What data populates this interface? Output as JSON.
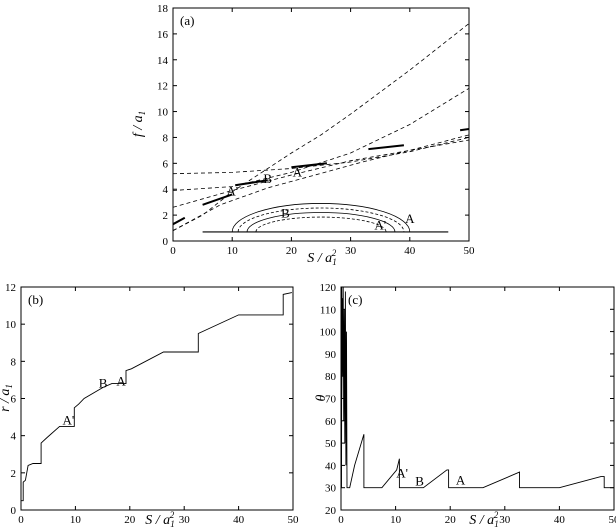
{
  "chart_data": [
    {
      "type": "line",
      "panel_label": "(a)",
      "xlabel_parts": [
        "S / a",
        "1",
        "2"
      ],
      "ylabel_parts": [
        "f / a",
        "1"
      ],
      "xlim": [
        0,
        50
      ],
      "ylim": [
        0,
        18
      ],
      "xticks": [
        0,
        10,
        20,
        30,
        40,
        50
      ],
      "yticks": [
        0,
        2,
        4,
        6,
        8,
        10,
        12,
        14,
        16,
        18
      ],
      "grid": false,
      "dashed_curves": [
        {
          "x": [
            0,
            8,
            16,
            24,
            32,
            40,
            50
          ],
          "y": [
            0.8,
            2.8,
            4.1,
            5.1,
            6.1,
            7.0,
            8.2
          ]
        },
        {
          "x": [
            0,
            10,
            20,
            30,
            40,
            50
          ],
          "y": [
            2.6,
            3.9,
            5.1,
            6.2,
            7.0,
            7.8
          ]
        },
        {
          "x": [
            0,
            10,
            20,
            30,
            40,
            50
          ],
          "y": [
            3.9,
            4.2,
            5.3,
            6.8,
            9.0,
            11.8
          ]
        },
        {
          "x": [
            0,
            10,
            20,
            30,
            40,
            50
          ],
          "y": [
            5.2,
            5.3,
            5.6,
            6.1,
            6.9,
            8.0
          ]
        },
        {
          "x": [
            0,
            5,
            10,
            15,
            20,
            25,
            30,
            35,
            40,
            45,
            50
          ],
          "y": [
            0.8,
            2.0,
            3.8,
            5.3,
            6.8,
            8.2,
            9.8,
            11.5,
            13.2,
            15.0,
            16.8
          ]
        }
      ],
      "solid_segments": [
        {
          "x": [
            0,
            2
          ],
          "y": [
            1.3,
            1.8
          ]
        },
        {
          "x": [
            5,
            10
          ],
          "y": [
            2.8,
            3.6
          ]
        },
        {
          "x": [
            10.5,
            16
          ],
          "y": [
            4.3,
            4.7
          ]
        },
        {
          "x": [
            20,
            26
          ],
          "y": [
            5.7,
            6.0
          ]
        },
        {
          "x": [
            33,
            39
          ],
          "y": [
            7.1,
            7.4
          ]
        },
        {
          "x": [
            48.5,
            50
          ],
          "y": [
            8.55,
            8.65
          ]
        }
      ],
      "baseline": {
        "x": [
          5,
          46.5
        ],
        "y": 0.7
      },
      "arches": [
        {
          "x0": 10,
          "x1": 40,
          "peak": 2.9
        },
        {
          "x0": 11,
          "x1": 39,
          "peak": 2.55
        },
        {
          "x0": 12.5,
          "x1": 37.5,
          "peak": 2.2
        },
        {
          "x0": 14,
          "x1": 36,
          "peak": 1.85
        }
      ],
      "annotations": [
        {
          "text": "A'",
          "x": 10,
          "y": 3.5
        },
        {
          "text": "B",
          "x": 16,
          "y": 4.5
        },
        {
          "text": "A",
          "x": 21,
          "y": 5.0
        },
        {
          "text": "B",
          "x": 19,
          "y": 1.8
        },
        {
          "text": "A'",
          "x": 35,
          "y": 0.9
        },
        {
          "text": "A",
          "x": 40,
          "y": 1.4
        }
      ]
    },
    {
      "type": "line",
      "panel_label": "(b)",
      "xlabel_parts": [
        "S / a",
        "1",
        "2"
      ],
      "ylabel_parts": [
        "r / a",
        "1"
      ],
      "xlim": [
        0,
        50
      ],
      "ylim": [
        0,
        12
      ],
      "xticks": [
        0,
        10,
        20,
        30,
        40,
        50
      ],
      "yticks": [
        0,
        2,
        4,
        6,
        8,
        10,
        12
      ],
      "grid": false,
      "x": [
        0,
        0.4,
        0.4,
        0.8,
        1.3,
        2.2,
        3.7,
        3.7,
        4.8,
        7.1,
        9.8,
        9.8,
        10.6,
        11.6,
        15.1,
        16.7,
        19.3,
        19.3,
        20.3,
        26.2,
        32.6,
        32.6,
        40.0,
        48.2,
        48.2,
        49.8
      ],
      "y": [
        0.5,
        0.5,
        1.5,
        1.6,
        2.4,
        2.5,
        2.5,
        3.6,
        3.9,
        4.5,
        4.5,
        5.5,
        5.7,
        6.0,
        6.6,
        6.8,
        6.8,
        7.5,
        7.6,
        8.5,
        8.5,
        9.5,
        10.5,
        10.5,
        11.6,
        11.7
      ],
      "annotations": [
        {
          "text": "A'",
          "x": 8.7,
          "y": 4.6
        },
        {
          "text": "B",
          "x": 15.1,
          "y": 6.6
        },
        {
          "text": "A",
          "x": 18.4,
          "y": 6.7
        }
      ]
    },
    {
      "type": "line",
      "panel_label": "(c)",
      "xlabel_parts": [
        "S / a",
        "1",
        "2"
      ],
      "ylabel_parts": [
        "θ"
      ],
      "xlim": [
        0,
        50
      ],
      "ylim": [
        20,
        120
      ],
      "xticks": [
        0,
        10,
        20,
        30,
        40,
        50
      ],
      "yticks": [
        20,
        30,
        40,
        50,
        60,
        70,
        80,
        90,
        100,
        110,
        120
      ],
      "grid": false,
      "x": [
        0,
        0.1,
        0.15,
        0.15,
        0.25,
        0.35,
        0.4,
        0.5,
        0.6,
        0.7,
        0.8,
        0.9,
        1.0,
        1.1,
        1.3,
        1.6,
        2.5,
        4.2,
        4.2,
        4.3,
        7.5,
        7.5,
        10.2,
        10.7,
        10.7,
        11.2,
        15.0,
        15.1,
        19.4,
        19.7,
        19.7,
        20.8,
        26.0,
        32.7,
        32.7,
        40.0,
        47.6,
        48.2,
        48.2,
        50.0
      ],
      "y": [
        30,
        30,
        120,
        70,
        115,
        80,
        120,
        60,
        110,
        50,
        118,
        40,
        100,
        30,
        30,
        30,
        40,
        54,
        30,
        30,
        30,
        30,
        38,
        43,
        30,
        30,
        30,
        30,
        38,
        38,
        30,
        30,
        30,
        37,
        30,
        30,
        35,
        35,
        30,
        30
      ],
      "annotations": [
        {
          "text": "A'",
          "x": 11.2,
          "y": 34.5
        },
        {
          "text": "B",
          "x": 14.4,
          "y": 31
        },
        {
          "text": "A",
          "x": 21.9,
          "y": 31.5
        }
      ]
    }
  ]
}
